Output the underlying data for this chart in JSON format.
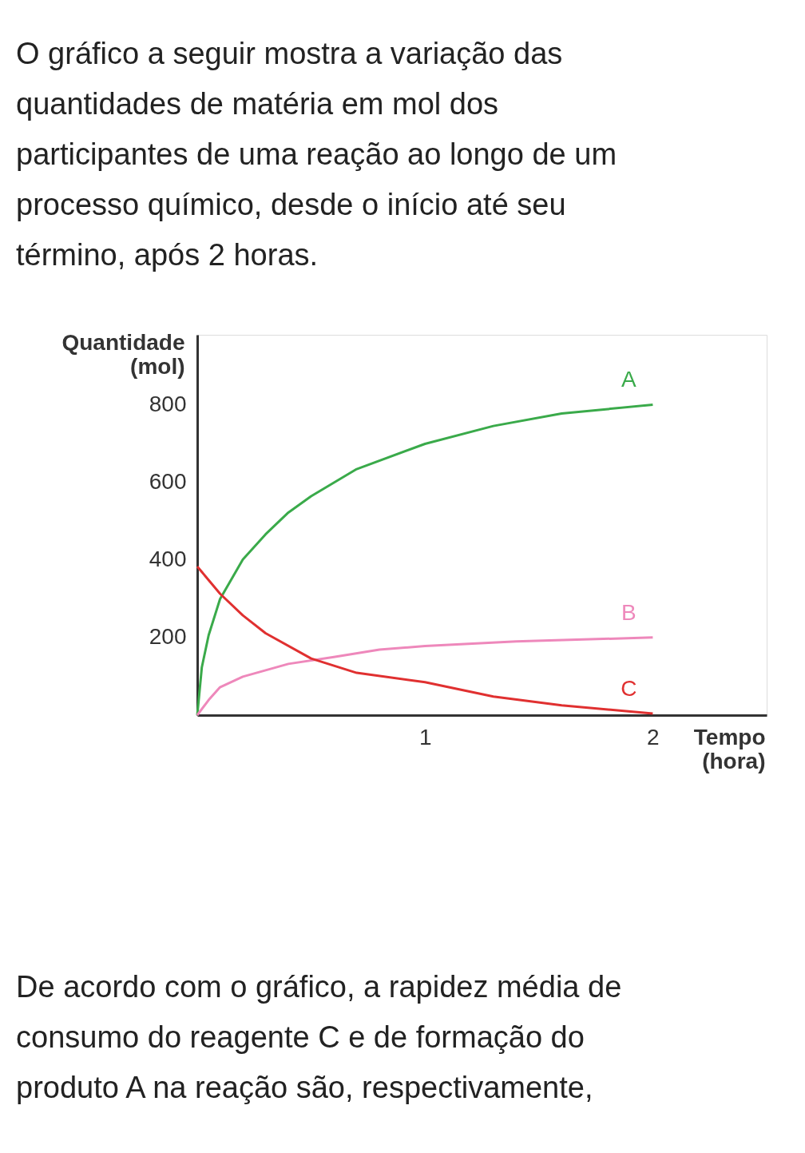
{
  "chart_data": {
    "type": "line",
    "title": "O gráfico a seguir mostra a variação das quantidades de matéria em mol dos participantes de uma reação ao longo de um processo químico, desde o início até seu término, após 2 horas.",
    "xlabel": "Tempo (hora)",
    "ylabel": "Quantidade (mol)",
    "annotations": [
      "De acordo com o gráfico, a rapidez média de consumo do reagente C e de formação do produto A na reação são, respectivamente,"
    ],
    "xlim": [
      0,
      2.5
    ],
    "ylim": [
      0,
      980
    ],
    "xticks": [
      1,
      2
    ],
    "yticks": [
      200,
      400,
      600,
      800
    ],
    "grid": false,
    "marker": "none",
    "line_style": "solid",
    "series": [
      {
        "name": "A",
        "color": "#3aaa4a",
        "x": [
          0,
          0.02,
          0.05,
          0.1,
          0.2,
          0.3,
          0.4,
          0.5,
          0.7,
          1.0,
          1.3,
          1.6,
          2.0
        ],
        "values": [
          0,
          123,
          206,
          299,
          401,
          466,
          522,
          564,
          634,
          699,
          745,
          777,
          800
        ]
      },
      {
        "name": "B",
        "color": "#ee88bb",
        "x": [
          0,
          0.05,
          0.1,
          0.2,
          0.4,
          0.6,
          0.8,
          1.0,
          1.4,
          2.0
        ],
        "values": [
          0,
          39,
          72,
          99,
          132,
          150,
          169,
          178,
          190,
          200
        ]
      },
      {
        "name": "C",
        "color": "#e03030",
        "x": [
          0,
          0.1,
          0.2,
          0.3,
          0.5,
          0.7,
          1.0,
          1.3,
          1.6,
          2.0
        ],
        "values": [
          383,
          313,
          257,
          211,
          146,
          109,
          85,
          48,
          25,
          4
        ]
      }
    ]
  }
}
